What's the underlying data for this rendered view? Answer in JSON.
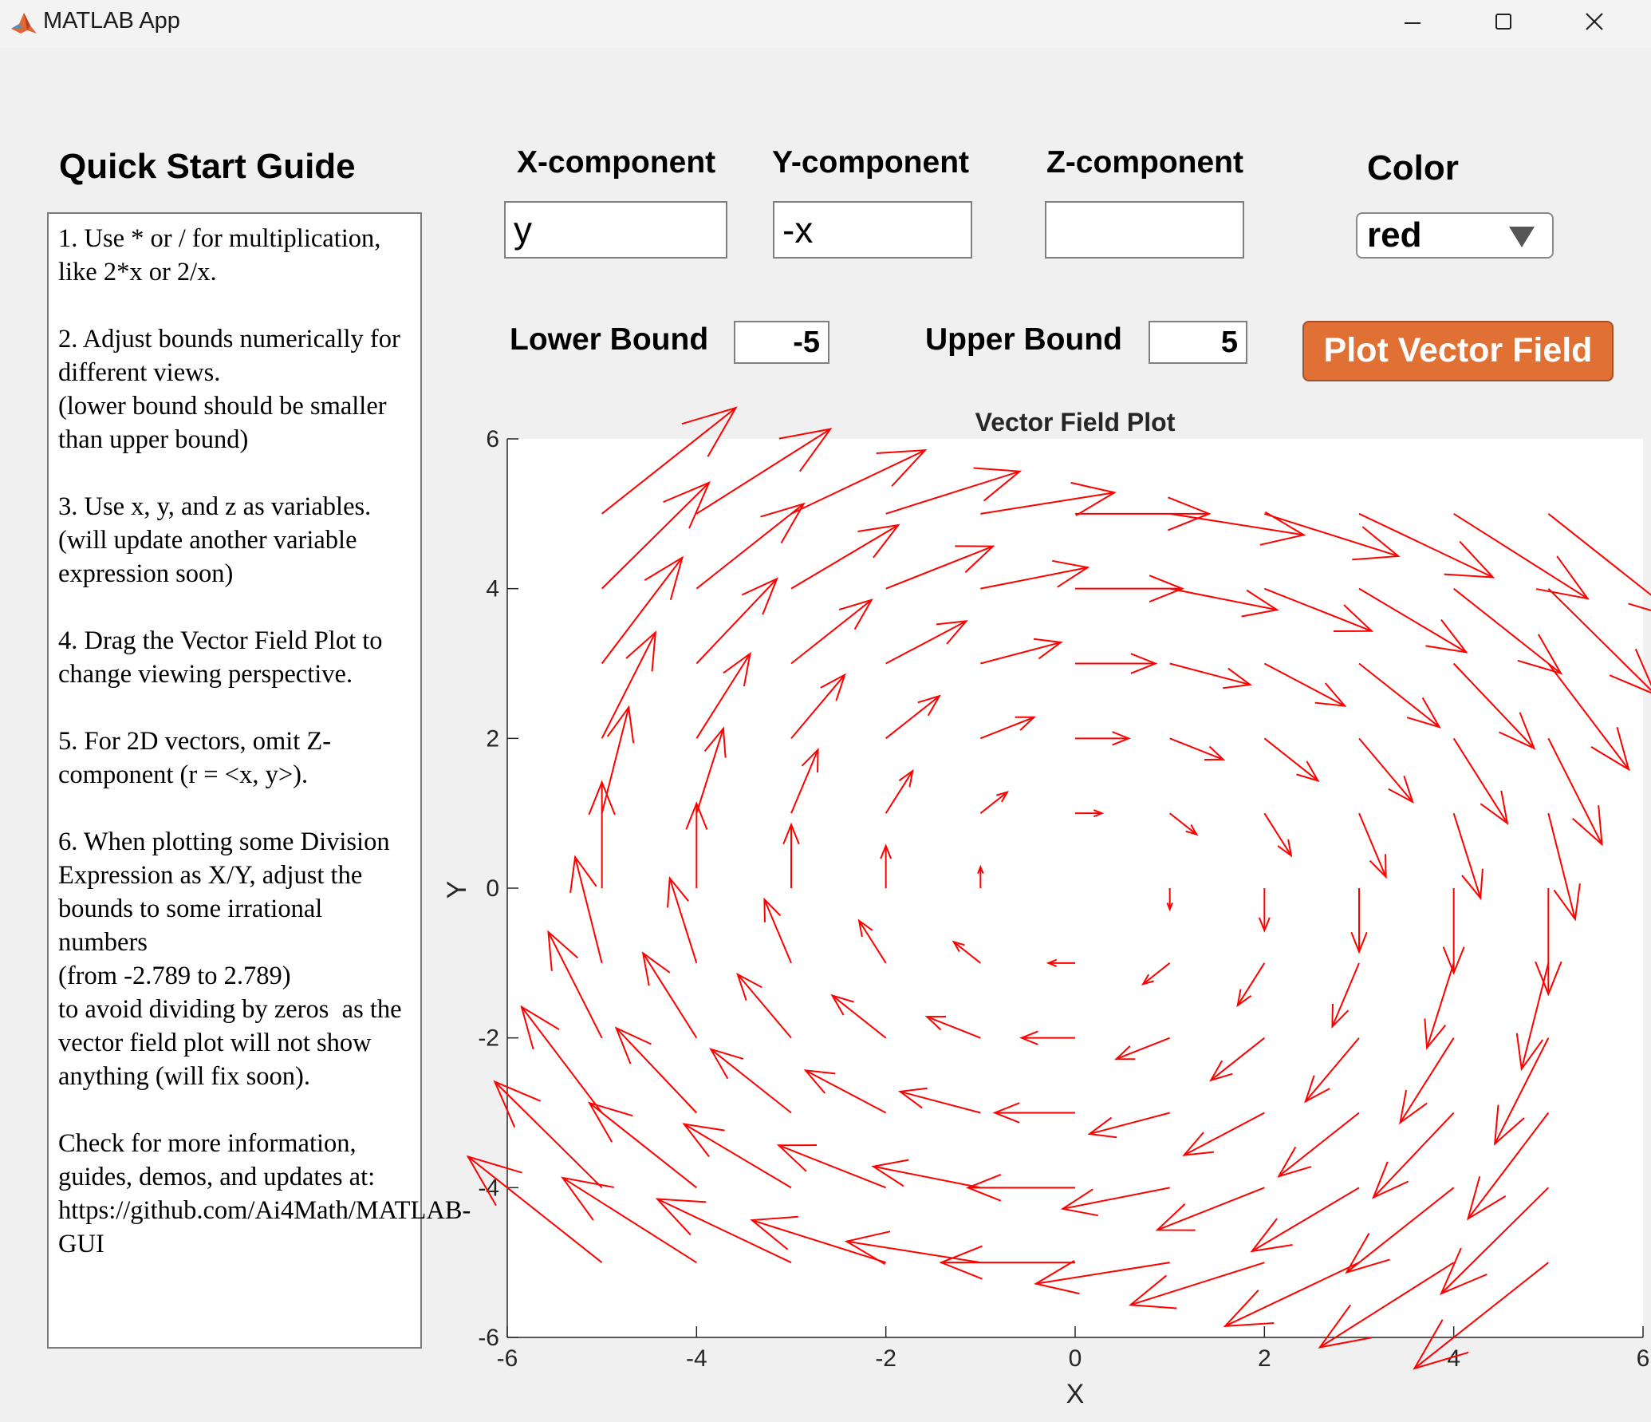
{
  "window": {
    "title": "MATLAB App",
    "icon": "matlab-logo-icon",
    "controls": [
      "minimize-icon",
      "maximize-icon",
      "close-icon"
    ]
  },
  "guide": {
    "title": "Quick Start Guide",
    "text": "1. Use * or / for multiplication, like 2*x or 2/x.\n\n2. Adjust bounds numerically for different views.\n(lower bound should be smaller than upper bound)\n\n3. Use x, y, and z as variables.\n(will update another variable expression soon)\n\n4. Drag the Vector Field Plot to change viewing perspective.\n\n5. For 2D vectors, omit Z-component (r = <x, y>).\n\n6. When plotting some Division Expression as X/Y, adjust the bounds to some irrational numbers\n(from -2.789 to 2.789)\nto avoid dividing by zeros  as the vector field plot will not show anything (will fix soon).\n\nCheck for more information, guides, demos, and updates at:\nhttps://github.com/Ai4Math/MATLAB-GUI"
  },
  "inputs": {
    "x_label": "X-component",
    "y_label": "Y-component",
    "z_label": "Z-component",
    "x_value": "y",
    "y_value": "-x",
    "z_value": "",
    "color_label": "Color",
    "color_value": "red",
    "lower_label": "Lower Bound",
    "lower_value": "-5",
    "upper_label": "Upper Bound",
    "upper_value": "5",
    "plot_button": "Plot Vector Field"
  },
  "colors": {
    "button_bg": "#e07033",
    "arrow": "#ff0000",
    "window_bg": "#f0f0f0"
  },
  "chart_data": {
    "type": "quiver",
    "title": "Vector Field Plot",
    "xlabel": "X",
    "ylabel": "Y",
    "field": {
      "u": "y",
      "v": "-x"
    },
    "grid_x": [
      -5,
      -4,
      -3,
      -2,
      -1,
      0,
      1,
      2,
      3,
      4,
      5
    ],
    "grid_y": [
      -5,
      -4,
      -3,
      -2,
      -1,
      0,
      1,
      2,
      3,
      4,
      5
    ],
    "xlim": [
      -6,
      6
    ],
    "ylim": [
      -6,
      6
    ],
    "xticks": [
      -6,
      -4,
      -2,
      0,
      2,
      4,
      6
    ],
    "yticks": [
      -6,
      -4,
      -2,
      0,
      2,
      4,
      6
    ],
    "arrow_scale": 0.283,
    "grid": false
  }
}
